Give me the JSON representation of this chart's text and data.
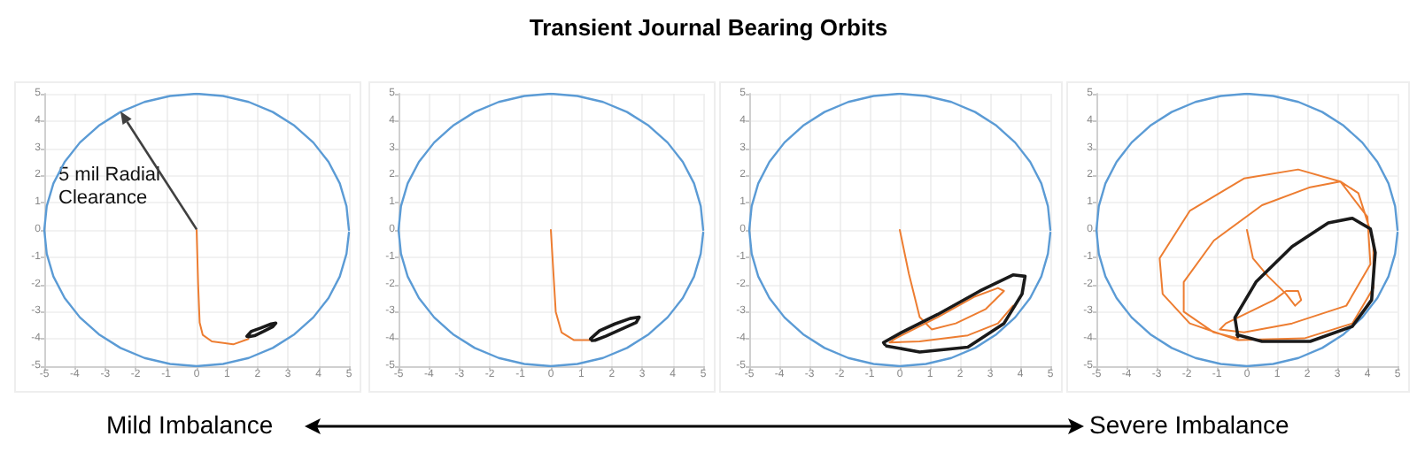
{
  "chart_data": [
    {
      "type": "line",
      "xlim": [
        -5,
        5
      ],
      "ylim": [
        -5,
        5
      ],
      "xticks": [
        -5,
        -4,
        -3,
        -2,
        -1,
        0,
        1,
        2,
        3,
        4,
        5
      ],
      "yticks": [
        -5,
        -4,
        -3,
        -2,
        -1,
        0,
        1,
        2,
        3,
        4,
        5
      ],
      "grid": true,
      "marker": "none",
      "annotations": [
        "5 mil Radial Clearance"
      ],
      "series": [
        {
          "color": "#5b9bd5",
          "x": [
            5,
            4.92,
            4.7,
            4.33,
            3.83,
            3.21,
            2.5,
            1.71,
            0.87,
            0,
            -0.87,
            -1.71,
            -2.5,
            -3.21,
            -3.83,
            -4.33,
            -4.7,
            -4.92,
            -5,
            -4.92,
            -4.7,
            -4.33,
            -3.83,
            -3.21,
            -2.5,
            -1.71,
            -0.87,
            0,
            0.87,
            1.71,
            2.5,
            3.21,
            3.83,
            4.33,
            4.7,
            4.92,
            5
          ],
          "values": [
            0,
            0.87,
            1.71,
            2.5,
            3.21,
            3.83,
            4.33,
            4.7,
            4.92,
            5,
            4.92,
            4.7,
            4.33,
            3.83,
            3.21,
            2.5,
            1.71,
            0.87,
            0,
            -0.87,
            -1.71,
            -2.5,
            -3.21,
            -3.83,
            -4.33,
            -4.7,
            -4.92,
            -5,
            -4.92,
            -4.7,
            -4.33,
            -3.83,
            -3.21,
            -2.5,
            -1.71,
            -0.87,
            -0.1
          ]
        },
        {
          "color": "#ed7d31",
          "x": [
            0,
            0.05,
            0.1,
            0.2,
            0.5,
            1.2,
            1.7
          ],
          "values": [
            0,
            -2,
            -3.4,
            -3.85,
            -4.09,
            -4.2,
            -4.0
          ]
        },
        {
          "color": "#1a1a1a",
          "x": [
            1.65,
            1.8,
            2.1,
            2.45,
            2.6,
            2.5,
            2.2,
            1.9,
            1.7
          ],
          "values": [
            -3.9,
            -3.72,
            -3.6,
            -3.45,
            -3.42,
            -3.55,
            -3.72,
            -3.88,
            -3.92
          ]
        }
      ]
    },
    {
      "type": "line",
      "xlim": [
        -5,
        5
      ],
      "ylim": [
        -5,
        5
      ],
      "xticks": [
        -5,
        -4,
        -3,
        -2,
        -1,
        0,
        1,
        2,
        3,
        4,
        5
      ],
      "yticks": [
        -5,
        -4,
        -3,
        -2,
        -1,
        0,
        1,
        2,
        3,
        4,
        5
      ],
      "grid": true,
      "marker": "none",
      "series": [
        {
          "color": "#5b9bd5",
          "x": [
            5,
            4.92,
            4.7,
            4.33,
            3.83,
            3.21,
            2.5,
            1.71,
            0.87,
            0,
            -0.87,
            -1.71,
            -2.5,
            -3.21,
            -3.83,
            -4.33,
            -4.7,
            -4.92,
            -5,
            -4.92,
            -4.7,
            -4.33,
            -3.83,
            -3.21,
            -2.5,
            -1.71,
            -0.87,
            0,
            0.87,
            1.71,
            2.5,
            3.21,
            3.83,
            4.33,
            4.7,
            4.92,
            5
          ],
          "values": [
            0,
            0.87,
            1.71,
            2.5,
            3.21,
            3.83,
            4.33,
            4.7,
            4.92,
            5,
            4.92,
            4.7,
            4.33,
            3.83,
            3.21,
            2.5,
            1.71,
            0.87,
            0,
            -0.87,
            -1.71,
            -2.5,
            -3.21,
            -3.83,
            -4.33,
            -4.7,
            -4.92,
            -5,
            -4.92,
            -4.7,
            -4.33,
            -3.83,
            -3.21,
            -2.5,
            -1.71,
            -0.87,
            -0.1
          ]
        },
        {
          "color": "#ed7d31",
          "x": [
            0,
            0.08,
            0.16,
            0.35,
            0.75,
            1.33
          ],
          "values": [
            0,
            -1.5,
            -3.0,
            -3.76,
            -4.04,
            -4.04
          ]
        },
        {
          "color": "#1a1a1a",
          "x": [
            1.3,
            1.6,
            2.1,
            2.6,
            2.9,
            2.8,
            2.3,
            1.8,
            1.45,
            1.35
          ],
          "values": [
            -4.0,
            -3.7,
            -3.45,
            -3.25,
            -3.2,
            -3.4,
            -3.65,
            -3.9,
            -4.05,
            -4.06
          ]
        }
      ]
    },
    {
      "type": "line",
      "xlim": [
        -5,
        5
      ],
      "ylim": [
        -5,
        5
      ],
      "xticks": [
        -5,
        -4,
        -3,
        -2,
        -1,
        0,
        1,
        2,
        3,
        4,
        5
      ],
      "yticks": [
        -5,
        -4,
        -3,
        -2,
        -1,
        0,
        1,
        2,
        3,
        4,
        5
      ],
      "grid": true,
      "marker": "none",
      "series": [
        {
          "color": "#5b9bd5",
          "x": [
            5,
            4.92,
            4.7,
            4.33,
            3.83,
            3.21,
            2.5,
            1.71,
            0.87,
            0,
            -0.87,
            -1.71,
            -2.5,
            -3.21,
            -3.83,
            -4.33,
            -4.7,
            -4.92,
            -5,
            -4.92,
            -4.7,
            -4.33,
            -3.83,
            -3.21,
            -2.5,
            -1.71,
            -0.87,
            0,
            0.87,
            1.71,
            2.5,
            3.21,
            3.83,
            4.33,
            4.7,
            4.92,
            5
          ],
          "values": [
            0,
            0.87,
            1.71,
            2.5,
            3.21,
            3.83,
            4.33,
            4.7,
            4.92,
            5,
            4.92,
            4.7,
            4.33,
            3.83,
            3.21,
            2.5,
            1.71,
            0.87,
            0,
            -0.87,
            -1.71,
            -2.5,
            -3.21,
            -3.83,
            -4.33,
            -4.7,
            -4.92,
            -5,
            -4.92,
            -4.7,
            -4.33,
            -3.83,
            -3.21,
            -2.5,
            -1.71,
            -0.87,
            -0.1
          ]
        },
        {
          "color": "#ed7d31",
          "x": [
            0,
            0.3,
            0.66,
            1.06,
            1.86,
            2.86,
            3.46,
            3.26,
            2.46,
            1.26,
            -0.14,
            -0.34,
            0.66,
            2.26,
            3.26,
            3.76
          ],
          "values": [
            0,
            -1.6,
            -3.2,
            -3.65,
            -3.43,
            -2.9,
            -2.24,
            -2.13,
            -2.46,
            -3.2,
            -3.98,
            -4.13,
            -4.09,
            -3.87,
            -3.43,
            -2.78
          ]
        },
        {
          "color": "#1a1a1a",
          "x": [
            -0.44,
            0.66,
            2.26,
            3.46,
            4.06,
            4.16,
            3.76,
            2.66,
            1.26,
            0.06,
            -0.54,
            -0.5
          ],
          "values": [
            -4.26,
            -4.48,
            -4.3,
            -3.43,
            -2.35,
            -1.7,
            -1.65,
            -2.24,
            -3.1,
            -3.76,
            -4.13,
            -4.2
          ]
        }
      ]
    },
    {
      "type": "line",
      "xlim": [
        -5,
        5
      ],
      "ylim": [
        -5,
        5
      ],
      "xticks": [
        -5,
        -4,
        -3,
        -2,
        -1,
        0,
        1,
        2,
        3,
        4,
        5
      ],
      "yticks": [
        -5,
        -4,
        -3,
        -2,
        -1,
        0,
        1,
        2,
        3,
        4,
        5
      ],
      "grid": true,
      "marker": "none",
      "series": [
        {
          "color": "#5b9bd5",
          "x": [
            5,
            4.92,
            4.7,
            4.33,
            3.83,
            3.21,
            2.5,
            1.71,
            0.87,
            0,
            -0.87,
            -1.71,
            -2.5,
            -3.21,
            -3.83,
            -4.33,
            -4.7,
            -4.92,
            -5,
            -4.92,
            -4.7,
            -4.33,
            -3.83,
            -3.21,
            -2.5,
            -1.71,
            -0.87,
            0,
            0.87,
            1.71,
            2.5,
            3.21,
            3.83,
            4.33,
            4.7,
            4.92,
            5
          ],
          "values": [
            0,
            0.87,
            1.71,
            2.5,
            3.21,
            3.83,
            4.33,
            4.7,
            4.92,
            5,
            4.92,
            4.7,
            4.33,
            3.83,
            3.21,
            2.5,
            1.71,
            0.87,
            0,
            -0.87,
            -1.71,
            -2.5,
            -3.21,
            -3.83,
            -4.33,
            -4.7,
            -4.92,
            -5,
            -4.92,
            -4.7,
            -4.33,
            -3.83,
            -3.21,
            -2.5,
            -1.71,
            -0.87,
            -0.1
          ]
        },
        {
          "color": "#ed7d31",
          "x": [
            0,
            0.2,
            0.7,
            1.3,
            1.6,
            1.8,
            1.7,
            1.3,
            0.9,
            0.1,
            -0.7,
            -0.9,
            -0.1,
            1.5,
            3.3,
            4.1,
            4.0,
            3.1,
            1.7,
            -0.1,
            -1.9,
            -2.9,
            -2.8,
            -1.9,
            -0.3,
            1.9,
            3.5,
            4.2,
            4.2,
            3.7,
            3.1,
            2.1,
            0.5,
            -1.1,
            -2.1,
            -2.1,
            -1.1,
            -0.3
          ],
          "values": [
            0,
            -1.04,
            -1.7,
            -2.35,
            -2.78,
            -2.57,
            -2.24,
            -2.24,
            -2.57,
            -3.0,
            -3.43,
            -3.65,
            -3.76,
            -3.43,
            -2.78,
            -1.26,
            0.48,
            1.78,
            2.22,
            1.89,
            0.7,
            -1.04,
            -2.35,
            -3.43,
            -4.04,
            -3.98,
            -3.43,
            -2.13,
            -0.39,
            1.35,
            1.78,
            1.57,
            0.91,
            -0.39,
            -1.91,
            -3.0,
            -3.76,
            -3.98
          ]
        },
        {
          "color": "#1a1a1a",
          "x": [
            -0.3,
            -0.4,
            0.3,
            1.5,
            2.7,
            3.5,
            4.1,
            4.26,
            4.14,
            3.5,
            2.1,
            0.5,
            -0.33
          ],
          "values": [
            -3.91,
            -3.22,
            -1.91,
            -0.61,
            0.26,
            0.43,
            0.04,
            -0.83,
            -2.57,
            -3.54,
            -4.09,
            -4.09,
            -3.85
          ]
        }
      ]
    },
    {
      "type": "other",
      "title": "Transient Journal Bearing Orbits",
      "annotations": [
        "Mild Imbalance",
        "Severe Imbalance"
      ]
    }
  ]
}
